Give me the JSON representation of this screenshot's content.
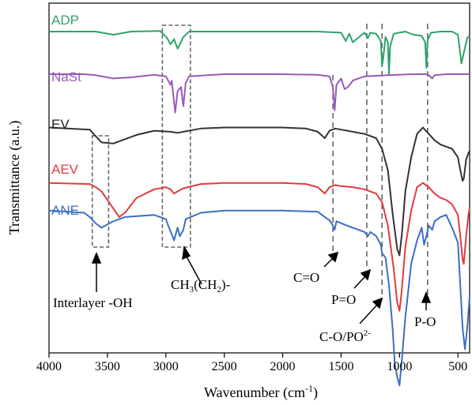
{
  "chart_data": {
    "type": "line",
    "xlabel": "Wavenumber (cm",
    "xlabel_sup": "-1",
    "xlabel_end": ")",
    "ylabel": "Transmittance (a.u.)",
    "xlim": [
      4000,
      400
    ],
    "x_reversed": true,
    "x_ticks": [
      4000,
      3500,
      3000,
      2500,
      2000,
      1500,
      1000,
      500
    ],
    "y_ticks": "none",
    "grid": false,
    "colors": {
      "ADP": "#2fa36b",
      "NaSt": "#9b59b6",
      "EV": "#333333",
      "AEV": "#e03c3c",
      "ANE": "#3b6fc4",
      "annotation": "#666666"
    },
    "series": [
      {
        "name": "ADP",
        "x": [
          4000,
          3600,
          3450,
          3300,
          3050,
          2990,
          2960,
          2930,
          2900,
          2880,
          2850,
          2800,
          2500,
          2000,
          1700,
          1500,
          1460,
          1430,
          1400,
          1300,
          1270,
          1250,
          1200,
          1160,
          1150,
          1140,
          1120,
          1100,
          1090,
          1080,
          1050,
          950,
          880,
          810,
          780,
          770,
          760,
          730,
          650,
          550,
          500,
          470,
          450,
          420,
          400
        ],
        "values": [
          0.0,
          0.0,
          -1.5,
          0.0,
          0.3,
          -3.0,
          -6.0,
          -3.5,
          -8.0,
          -6.0,
          -2.5,
          0.0,
          0.0,
          0.0,
          0.0,
          -0.5,
          -4.5,
          -1.0,
          -5.0,
          -0.5,
          -3.0,
          -0.5,
          -1.0,
          -4.5,
          -16.0,
          -13.0,
          -2.5,
          -5.0,
          -20.0,
          -7.0,
          -1.0,
          0.0,
          -1.5,
          -2.0,
          -5.0,
          -17.0,
          -4.0,
          -0.5,
          0.0,
          0.0,
          -1.5,
          -15.0,
          -10.0,
          -3.0,
          -2.0
        ]
      },
      {
        "name": "NaSt",
        "x": [
          4000,
          3700,
          3600,
          3450,
          3300,
          3100,
          3000,
          2960,
          2950,
          2920,
          2900,
          2870,
          2850,
          2830,
          2800,
          2500,
          2000,
          1700,
          1600,
          1570,
          1555,
          1540,
          1500,
          1470,
          1440,
          1400,
          1300,
          1100,
          900,
          760,
          720,
          700,
          600,
          500,
          400
        ],
        "values": [
          0.0,
          0.0,
          -0.5,
          -2.0,
          -1.5,
          -0.3,
          -1.0,
          -5.0,
          -3.0,
          -18.0,
          -8.0,
          -6.0,
          -15.0,
          -4.0,
          -1.0,
          0.0,
          0.0,
          -0.3,
          -1.0,
          -6.0,
          -17.0,
          -5.0,
          -2.0,
          -7.0,
          -6.0,
          -3.0,
          -1.0,
          -0.5,
          0.0,
          0.0,
          -2.0,
          -0.5,
          0.0,
          0.0,
          0.0
        ]
      },
      {
        "name": "EV",
        "x": [
          4000,
          3650,
          3620,
          3550,
          3450,
          3350,
          3250,
          3100,
          2960,
          2900,
          2850,
          2700,
          2500,
          2000,
          1800,
          1700,
          1640,
          1600,
          1550,
          1500,
          1400,
          1300,
          1200,
          1150,
          1100,
          1060,
          1020,
          1000,
          980,
          950,
          900,
          850,
          800,
          750,
          700,
          650,
          600,
          550,
          500,
          480,
          460,
          450,
          430,
          410,
          400
        ],
        "values": [
          0.0,
          -1.0,
          -3.0,
          -7.0,
          -7.5,
          -5.5,
          -3.5,
          -1.5,
          -2.0,
          -2.5,
          -2.0,
          -0.5,
          0.0,
          0.0,
          -0.5,
          -2.0,
          -5.0,
          -1.5,
          -0.5,
          -1.0,
          -2.0,
          -3.0,
          -5.0,
          -10.0,
          -20.0,
          -40.0,
          -57.0,
          -60.0,
          -50.0,
          -30.0,
          -14.0,
          -3.0,
          0.0,
          -3.0,
          -6.0,
          -8.0,
          -9.0,
          -10.0,
          -14.0,
          -20.0,
          -25.0,
          -24.0,
          -15.0,
          -12.0,
          -11.0
        ]
      },
      {
        "name": "AEV",
        "x": [
          4000,
          3650,
          3600,
          3550,
          3450,
          3400,
          3350,
          3250,
          3100,
          3000,
          2960,
          2930,
          2900,
          2850,
          2700,
          2500,
          2000,
          1800,
          1700,
          1640,
          1600,
          1550,
          1500,
          1400,
          1300,
          1200,
          1150,
          1100,
          1050,
          1020,
          1000,
          980,
          950,
          900,
          850,
          800,
          750,
          700,
          650,
          600,
          550,
          500,
          480,
          460,
          450,
          430,
          410,
          400
        ],
        "values": [
          0.0,
          -0.5,
          -2.0,
          -4.0,
          -12.0,
          -16.0,
          -14.0,
          -7.0,
          -3.0,
          -2.0,
          -3.0,
          -5.0,
          -4.0,
          -2.5,
          -0.5,
          0.0,
          0.0,
          -0.5,
          -2.0,
          -5.0,
          -2.0,
          -1.0,
          -1.5,
          -2.0,
          -3.0,
          -5.0,
          -9.0,
          -20.0,
          -40.0,
          -56.0,
          -60.0,
          -50.0,
          -30.0,
          -13.0,
          -2.0,
          0.0,
          -2.0,
          -5.0,
          -7.0,
          -8.0,
          -10.0,
          -15.0,
          -25.0,
          -36.0,
          -38.0,
          -25.0,
          -15.0,
          -12.0
        ]
      },
      {
        "name": "ANE",
        "x": [
          4000,
          3700,
          3650,
          3600,
          3550,
          3450,
          3350,
          3100,
          3000,
          2980,
          2950,
          2930,
          2900,
          2880,
          2850,
          2830,
          2700,
          2500,
          2000,
          1700,
          1640,
          1600,
          1570,
          1555,
          1540,
          1450,
          1400,
          1300,
          1270,
          1250,
          1200,
          1160,
          1150,
          1120,
          1090,
          1060,
          1040,
          1020,
          1000,
          980,
          950,
          900,
          850,
          810,
          790,
          770,
          750,
          720,
          700,
          650,
          600,
          550,
          500,
          480,
          460,
          440,
          420,
          400
        ],
        "values": [
          0.0,
          -1.0,
          -3.0,
          -6.0,
          -8.0,
          -5.0,
          -3.0,
          -2.0,
          -4.0,
          -7.0,
          -11.0,
          -14.0,
          -8.0,
          -12.0,
          -9.0,
          -4.0,
          -1.0,
          0.0,
          0.0,
          -0.5,
          -3.0,
          -4.5,
          -7.0,
          -9.0,
          -5.0,
          -7.0,
          -8.0,
          -10.0,
          -12.0,
          -10.0,
          -12.0,
          -16.0,
          -20.0,
          -22.0,
          -35.0,
          -55.0,
          -72.0,
          -78.0,
          -82.0,
          -70.0,
          -50.0,
          -25.0,
          -14.0,
          -8.0,
          -16.0,
          -12.0,
          -7.0,
          -9.0,
          -5.0,
          -3.0,
          -2.0,
          -8.0,
          -15.0,
          -35.0,
          -55.0,
          -65.0,
          -55.0,
          -40.0
        ]
      }
    ],
    "offsets": {
      "ADP": 0,
      "NaSt": 20,
      "EV": 45,
      "AEV": 71,
      "ANE": 84
    },
    "annotations": {
      "boxes": [
        {
          "x1": 3630,
          "x2": 3490
        },
        {
          "x1": 3030,
          "x2": 2790
        }
      ],
      "vlines": [
        1570,
        1280,
        1150,
        760
      ],
      "labels": {
        "interlayer": "Interlayer -OH",
        "ch_1": "CH",
        "ch_2": "3",
        "ch_3": "(CH",
        "ch_4": "2",
        "ch_5": ")-",
        "co": "C=O",
        "po": "P=O",
        "cop_1": "C-O/PO",
        "cop_2": "2-",
        "pdash": "P-O"
      }
    }
  }
}
